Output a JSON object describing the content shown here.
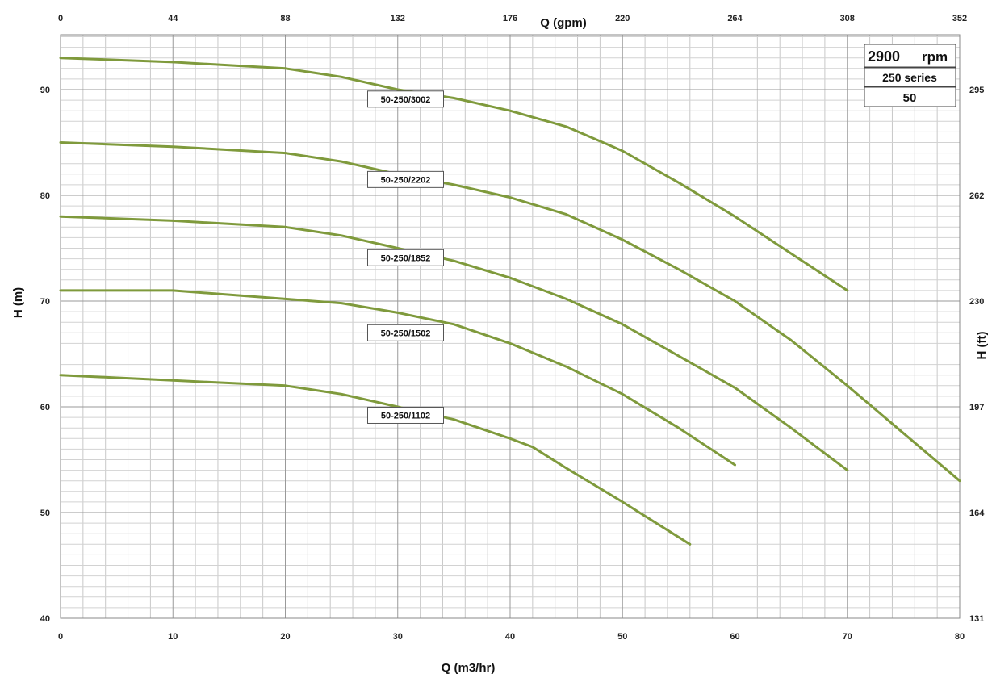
{
  "chart_data": {
    "type": "line",
    "title": "",
    "xlabel": "Q (m3/hr)",
    "x2label": "Q (gpm)",
    "ylabel": "H (m)",
    "y2label": "H (ft)",
    "xlim": [
      0,
      80
    ],
    "ylim": [
      40,
      95
    ],
    "x_ticks": [
      0,
      10,
      20,
      30,
      40,
      50,
      60,
      70,
      80
    ],
    "x2_ticks": [
      "0",
      "44",
      "88",
      "132",
      "176",
      "220",
      "264",
      "308",
      "352"
    ],
    "y_ticks": [
      40,
      50,
      60,
      70,
      80,
      90
    ],
    "y2_ticks": [
      "131",
      "164",
      "197",
      "230",
      "262",
      "295"
    ],
    "grid": true,
    "line_color": "#7f9a3c",
    "info_box": {
      "speed": "2900",
      "speed_unit": "rpm",
      "series_name": "250 series",
      "size": "50"
    },
    "series": [
      {
        "name": "50-250/3002",
        "x": [
          0,
          10,
          20,
          25,
          30,
          35,
          40,
          45,
          50,
          55,
          60,
          65,
          70
        ],
        "y": [
          93,
          92.6,
          92,
          91.2,
          90,
          89.2,
          88,
          86.5,
          84.2,
          81.2,
          78,
          74.5,
          71
        ]
      },
      {
        "name": "50-250/2202",
        "x": [
          0,
          10,
          20,
          25,
          30,
          35,
          40,
          45,
          50,
          55,
          60,
          65,
          70,
          75,
          80
        ],
        "y": [
          85,
          84.6,
          84,
          83.2,
          82,
          81,
          79.8,
          78.2,
          75.8,
          73,
          70,
          66.3,
          62,
          57.5,
          53
        ]
      },
      {
        "name": "50-250/1852",
        "x": [
          0,
          10,
          20,
          25,
          30,
          35,
          40,
          45,
          50,
          55,
          60,
          65,
          70
        ],
        "y": [
          78,
          77.6,
          77,
          76.2,
          75,
          73.8,
          72.2,
          70.2,
          67.8,
          64.8,
          61.8,
          58,
          54
        ]
      },
      {
        "name": "50-250/1502",
        "x": [
          0,
          10,
          20,
          25,
          30,
          35,
          40,
          45,
          50,
          55,
          60
        ],
        "y": [
          71,
          71,
          70.2,
          69.8,
          68.9,
          67.8,
          66,
          63.8,
          61.2,
          58,
          54.5
        ]
      },
      {
        "name": "50-250/1102",
        "x": [
          0,
          10,
          20,
          25,
          30,
          35,
          40,
          42,
          45,
          50,
          56
        ],
        "y": [
          63,
          62.5,
          62,
          61.2,
          60,
          58.8,
          57,
          56.2,
          54.2,
          51,
          47
        ]
      }
    ],
    "curve_labels": [
      {
        "text": "50-250/3002",
        "x": 30.7,
        "y": 89.1
      },
      {
        "text": "50-250/2202",
        "x": 30.7,
        "y": 81.5
      },
      {
        "text": "50-250/1852",
        "x": 30.7,
        "y": 74.1
      },
      {
        "text": "50-250/1502",
        "x": 30.7,
        "y": 67.0
      },
      {
        "text": "50-250/1102",
        "x": 30.7,
        "y": 59.2
      }
    ]
  }
}
